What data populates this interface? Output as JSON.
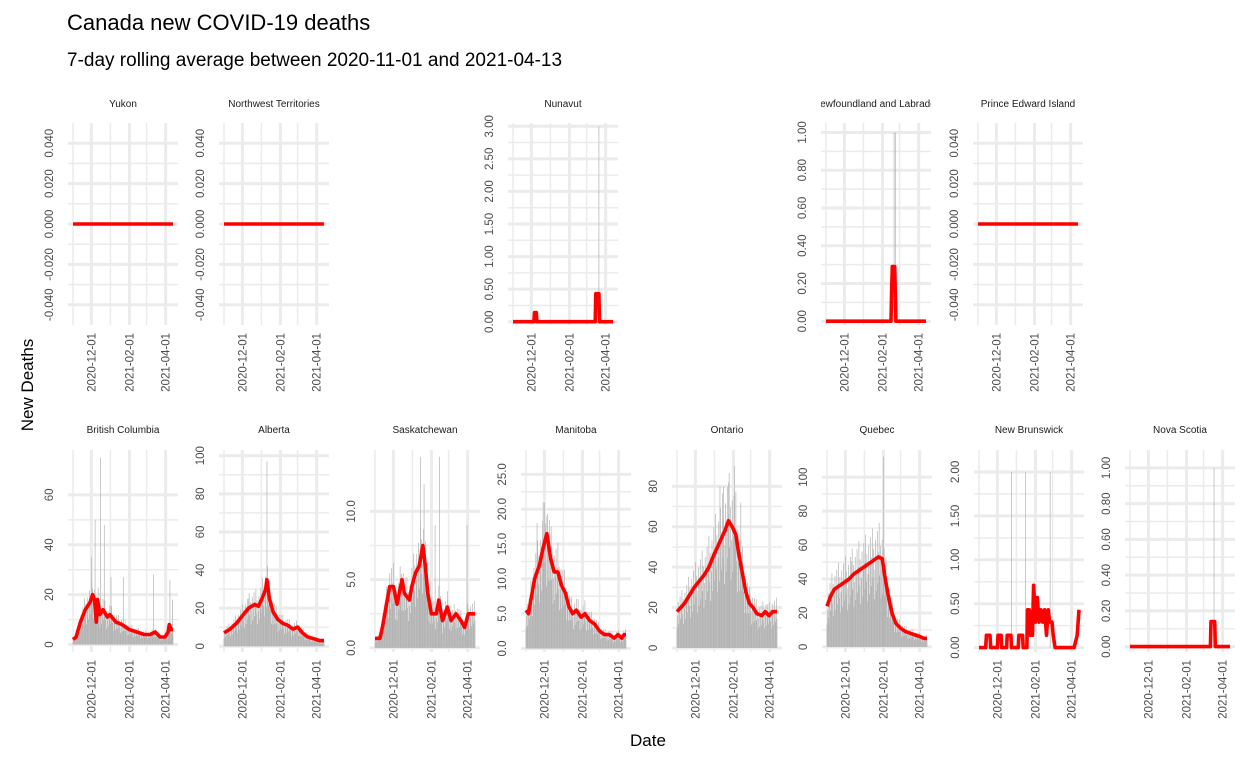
{
  "chart_data": {
    "type": "bar",
    "title": "Canada new COVID-19 deaths",
    "subtitle": "7-day rolling average between 2020-11-01 and 2021-04-13",
    "xlabel": "Date",
    "ylabel": "New Deaths",
    "x_ticks": [
      "2020-12-01",
      "2021-02-01",
      "2021-04-01"
    ],
    "colors": {
      "bars": "#b3b3b3",
      "line": "#ff0000",
      "grid": "#ebebeb"
    },
    "panels": [
      {
        "name": "Yukon",
        "ylim": [
          -0.05,
          0.05
        ],
        "yticks": [
          "-0.040",
          "-0.020",
          "0.000",
          "0.020",
          "0.040"
        ],
        "spikes": [],
        "avg": [
          [
            0,
            0
          ],
          [
            163,
            0
          ]
        ]
      },
      {
        "name": "Northwest Territories",
        "ylim": [
          -0.05,
          0.05
        ],
        "yticks": [
          "-0.040",
          "-0.020",
          "0.000",
          "0.020",
          "0.040"
        ],
        "spikes": [],
        "avg": [
          [
            0,
            0
          ],
          [
            163,
            0
          ]
        ]
      },
      {
        "name": "Nunavut",
        "ylim": [
          -0.05,
          3.05
        ],
        "yticks": [
          "0.00",
          "0.50",
          "1.00",
          "1.50",
          "2.00",
          "2.50",
          "3.00"
        ],
        "spikes": [
          [
            140,
            3
          ]
        ],
        "avg": [
          [
            0,
            0
          ],
          [
            34,
            0
          ],
          [
            35,
            0.14
          ],
          [
            38,
            0.14
          ],
          [
            39,
            0
          ],
          [
            134,
            0
          ],
          [
            135,
            0.43
          ],
          [
            140,
            0.43
          ],
          [
            141,
            0
          ],
          [
            163,
            0
          ]
        ]
      },
      {
        "name": "Newfoundland and Labrador",
        "ylim": [
          -0.02,
          1.05
        ],
        "yticks": [
          "0.00",
          "0.20",
          "0.40",
          "0.60",
          "0.80",
          "1.00"
        ],
        "spikes": [
          [
            111,
            1
          ],
          [
            113,
            1
          ]
        ],
        "avg": [
          [
            0,
            0
          ],
          [
            106,
            0
          ],
          [
            107,
            0.15
          ],
          [
            108,
            0.29
          ],
          [
            112,
            0.29
          ],
          [
            113,
            0.15
          ],
          [
            114,
            0
          ],
          [
            163,
            0
          ]
        ]
      },
      {
        "name": "Prince Edward Island",
        "ylim": [
          -0.05,
          0.05
        ],
        "yticks": [
          "-0.040",
          "-0.020",
          "0.000",
          "0.020",
          "0.040"
        ],
        "spikes": [],
        "avg": [
          [
            0,
            0
          ],
          [
            163,
            0
          ]
        ]
      },
      {
        "name": "British Columbia",
        "ylim": [
          -3,
          78
        ],
        "yticks": [
          "0",
          "20",
          "40",
          "60"
        ],
        "spikes": [
          [
            30,
            35
          ],
          [
            36,
            50
          ],
          [
            45,
            75
          ],
          [
            51,
            48
          ],
          [
            62,
            27
          ],
          [
            82,
            27
          ],
          [
            131,
            28
          ],
          [
            158,
            26
          ],
          [
            162,
            18
          ]
        ],
        "avg": [
          [
            0,
            2
          ],
          [
            5,
            3
          ],
          [
            12,
            9
          ],
          [
            20,
            14
          ],
          [
            28,
            17
          ],
          [
            32,
            20
          ],
          [
            35,
            18
          ],
          [
            38,
            9
          ],
          [
            40,
            18
          ],
          [
            44,
            12
          ],
          [
            49,
            14
          ],
          [
            56,
            11
          ],
          [
            60,
            12
          ],
          [
            70,
            9
          ],
          [
            80,
            8
          ],
          [
            92,
            6
          ],
          [
            104,
            5
          ],
          [
            116,
            4
          ],
          [
            126,
            4
          ],
          [
            134,
            5
          ],
          [
            142,
            3
          ],
          [
            150,
            3
          ],
          [
            155,
            5
          ],
          [
            157,
            8
          ],
          [
            160,
            6
          ],
          [
            163,
            6
          ]
        ]
      },
      {
        "name": "Alberta",
        "ylim": [
          -3,
          103
        ],
        "yticks": [
          "0",
          "20",
          "40",
          "60",
          "80",
          "100"
        ],
        "spikes": [
          [
            40,
            25
          ],
          [
            60,
            30
          ],
          [
            70,
            97
          ]
        ],
        "avg": [
          [
            0,
            7
          ],
          [
            10,
            9
          ],
          [
            20,
            12
          ],
          [
            30,
            16
          ],
          [
            40,
            20
          ],
          [
            50,
            22
          ],
          [
            56,
            21
          ],
          [
            62,
            25
          ],
          [
            68,
            30
          ],
          [
            70,
            35
          ],
          [
            74,
            25
          ],
          [
            80,
            18
          ],
          [
            88,
            14
          ],
          [
            96,
            12
          ],
          [
            104,
            11
          ],
          [
            112,
            9
          ],
          [
            120,
            10
          ],
          [
            128,
            7
          ],
          [
            136,
            5
          ],
          [
            146,
            4
          ],
          [
            156,
            3
          ],
          [
            163,
            3
          ]
        ]
      },
      {
        "name": "Saskatchewan",
        "ylim": [
          -0.3,
          14.5
        ],
        "yticks": [
          "0.0",
          "5.0",
          "10.0"
        ],
        "spikes": [
          [
            74,
            14
          ],
          [
            80,
            12
          ],
          [
            98,
            9
          ],
          [
            105,
            14
          ],
          [
            150,
            9
          ]
        ],
        "avg": [
          [
            0,
            0.7
          ],
          [
            8,
            0.7
          ],
          [
            12,
            1.5
          ],
          [
            18,
            3
          ],
          [
            24,
            4.5
          ],
          [
            30,
            4.5
          ],
          [
            36,
            3.2
          ],
          [
            44,
            5
          ],
          [
            48,
            4
          ],
          [
            56,
            3.5
          ],
          [
            60,
            4.5
          ],
          [
            66,
            5.5
          ],
          [
            72,
            6
          ],
          [
            78,
            7.5
          ],
          [
            82,
            6
          ],
          [
            86,
            4
          ],
          [
            92,
            2.5
          ],
          [
            100,
            2.5
          ],
          [
            104,
            3.5
          ],
          [
            110,
            2
          ],
          [
            118,
            3
          ],
          [
            124,
            2
          ],
          [
            132,
            2.5
          ],
          [
            140,
            2
          ],
          [
            146,
            1.5
          ],
          [
            152,
            2.5
          ],
          [
            156,
            2.5
          ],
          [
            160,
            2.5
          ],
          [
            163,
            2.5
          ]
        ]
      },
      {
        "name": "Manitoba",
        "ylim": [
          -0.5,
          28.5
        ],
        "yticks": [
          "0.0",
          "5.0",
          "10.0",
          "15.0",
          "20.0",
          "25.0"
        ],
        "spikes": [
          [
            18,
            18
          ],
          [
            28,
            21
          ],
          [
            34,
            19
          ]
        ],
        "avg": [
          [
            0,
            5.5
          ],
          [
            4,
            5
          ],
          [
            8,
            7
          ],
          [
            14,
            10
          ],
          [
            22,
            12
          ],
          [
            28,
            14.5
          ],
          [
            34,
            16.5
          ],
          [
            40,
            13
          ],
          [
            46,
            11
          ],
          [
            52,
            11
          ],
          [
            58,
            9
          ],
          [
            64,
            8
          ],
          [
            70,
            6
          ],
          [
            76,
            5
          ],
          [
            82,
            5.5
          ],
          [
            90,
            4.5
          ],
          [
            96,
            5
          ],
          [
            104,
            4
          ],
          [
            112,
            3.5
          ],
          [
            120,
            2.5
          ],
          [
            128,
            2
          ],
          [
            136,
            2
          ],
          [
            144,
            1.5
          ],
          [
            150,
            2
          ],
          [
            156,
            1.5
          ],
          [
            160,
            2
          ],
          [
            163,
            2
          ]
        ]
      },
      {
        "name": "Ontario",
        "ylim": [
          -2,
          98
        ],
        "yticks": [
          "0",
          "20",
          "40",
          "60",
          "80"
        ],
        "spikes": [
          [
            70,
            80
          ],
          [
            76,
            80
          ],
          [
            84,
            82
          ],
          [
            94,
            90
          ],
          [
            104,
            72
          ]
        ],
        "avg": [
          [
            0,
            18
          ],
          [
            6,
            20
          ],
          [
            12,
            22
          ],
          [
            20,
            26
          ],
          [
            28,
            30
          ],
          [
            36,
            33
          ],
          [
            44,
            36
          ],
          [
            52,
            40
          ],
          [
            60,
            46
          ],
          [
            66,
            50
          ],
          [
            72,
            54
          ],
          [
            78,
            58
          ],
          [
            84,
            63
          ],
          [
            90,
            60
          ],
          [
            96,
            56
          ],
          [
            100,
            48
          ],
          [
            106,
            38
          ],
          [
            112,
            28
          ],
          [
            118,
            22
          ],
          [
            124,
            20
          ],
          [
            130,
            17
          ],
          [
            138,
            16
          ],
          [
            144,
            18
          ],
          [
            150,
            16
          ],
          [
            156,
            18
          ],
          [
            163,
            18
          ]
        ]
      },
      {
        "name": "Quebec",
        "ylim": [
          -3,
          116
        ],
        "yticks": [
          "0",
          "20",
          "40",
          "60",
          "80",
          "100"
        ],
        "spikes": [
          [
            40,
            50
          ],
          [
            60,
            55
          ],
          [
            92,
            112
          ]
        ],
        "avg": [
          [
            0,
            24
          ],
          [
            6,
            30
          ],
          [
            12,
            34
          ],
          [
            20,
            36
          ],
          [
            28,
            38
          ],
          [
            36,
            40
          ],
          [
            44,
            43
          ],
          [
            52,
            45
          ],
          [
            60,
            47
          ],
          [
            68,
            49
          ],
          [
            76,
            51
          ],
          [
            84,
            53
          ],
          [
            90,
            52
          ],
          [
            94,
            42
          ],
          [
            100,
            30
          ],
          [
            106,
            20
          ],
          [
            112,
            14
          ],
          [
            120,
            11
          ],
          [
            128,
            9
          ],
          [
            136,
            8
          ],
          [
            144,
            7
          ],
          [
            152,
            6
          ],
          [
            158,
            5
          ],
          [
            163,
            5
          ]
        ]
      },
      {
        "name": "New Brunswick",
        "ylim": [
          -0.05,
          2.25
        ],
        "yticks": [
          "0.00",
          "0.50",
          "1.00",
          "1.50",
          "2.00"
        ],
        "spikes": [
          [
            53,
            2
          ],
          [
            76,
            2
          ],
          [
            116,
            2
          ]
        ],
        "avg": [
          [
            0,
            0
          ],
          [
            11,
            0
          ],
          [
            12,
            0.14
          ],
          [
            18,
            0.14
          ],
          [
            19,
            0
          ],
          [
            30,
            0
          ],
          [
            31,
            0.14
          ],
          [
            36,
            0.14
          ],
          [
            37,
            0
          ],
          [
            45,
            0
          ],
          [
            46,
            0.14
          ],
          [
            52,
            0.14
          ],
          [
            53,
            0
          ],
          [
            64,
            0
          ],
          [
            65,
            0.14
          ],
          [
            71,
            0.14
          ],
          [
            72,
            0
          ],
          [
            78,
            0
          ],
          [
            79,
            0.43
          ],
          [
            82,
            0.43
          ],
          [
            84,
            0.14
          ],
          [
            87,
            0.14
          ],
          [
            89,
            0.71
          ],
          [
            92,
            0.29
          ],
          [
            95,
            0.57
          ],
          [
            98,
            0.29
          ],
          [
            101,
            0.43
          ],
          [
            104,
            0.29
          ],
          [
            107,
            0.43
          ],
          [
            110,
            0.14
          ],
          [
            113,
            0.43
          ],
          [
            115,
            0.29
          ],
          [
            119,
            0.29
          ],
          [
            121,
            0.14
          ],
          [
            124,
            0
          ],
          [
            148,
            0
          ],
          [
            155,
            0
          ],
          [
            160,
            0.14
          ],
          [
            163,
            0.43
          ]
        ]
      },
      {
        "name": "Nova Scotia",
        "ylim": [
          -0.03,
          1.1
        ],
        "yticks": [
          "0.00",
          "0.20",
          "0.40",
          "0.60",
          "0.80",
          "1.00"
        ],
        "spikes": [
          [
            137,
            1
          ]
        ],
        "avg": [
          [
            0,
            0
          ],
          [
            131,
            0
          ],
          [
            132,
            0.14
          ],
          [
            138,
            0.14
          ],
          [
            139,
            0
          ],
          [
            163,
            0
          ]
        ]
      }
    ]
  }
}
